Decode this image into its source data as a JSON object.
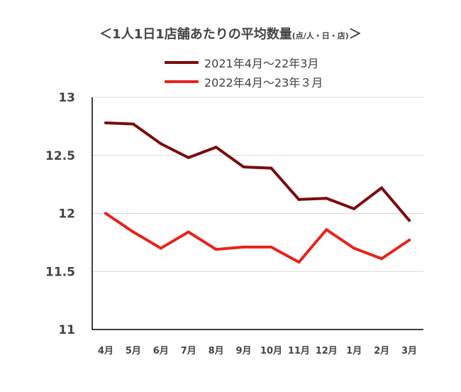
{
  "chart_data": {
    "type": "line",
    "title": "＜1人1日1店舗あたりの平均数量",
    "title_unit": "(点/人・日・店)",
    "title_close": "＞",
    "categories": [
      "4月",
      "5月",
      "6月",
      "7月",
      "8月",
      "9月",
      "10月",
      "11月",
      "12月",
      "1月",
      "2月",
      "3月"
    ],
    "series": [
      {
        "name": "2021年4月～22年3月",
        "color": "#7b0c0c",
        "values": [
          12.78,
          12.77,
          12.6,
          12.48,
          12.57,
          12.4,
          12.39,
          12.12,
          12.13,
          12.04,
          12.22,
          11.94
        ]
      },
      {
        "name": "2022年4月～23年３月",
        "color": "#e8221c",
        "values": [
          12.0,
          11.84,
          11.7,
          11.84,
          11.69,
          11.71,
          11.71,
          11.58,
          11.86,
          11.7,
          11.61,
          11.77
        ]
      }
    ],
    "ylim": [
      11,
      13
    ],
    "yticks": [
      "11",
      "11.5",
      "12",
      "12.5",
      "13"
    ],
    "grid": true,
    "legend_position": "top"
  }
}
